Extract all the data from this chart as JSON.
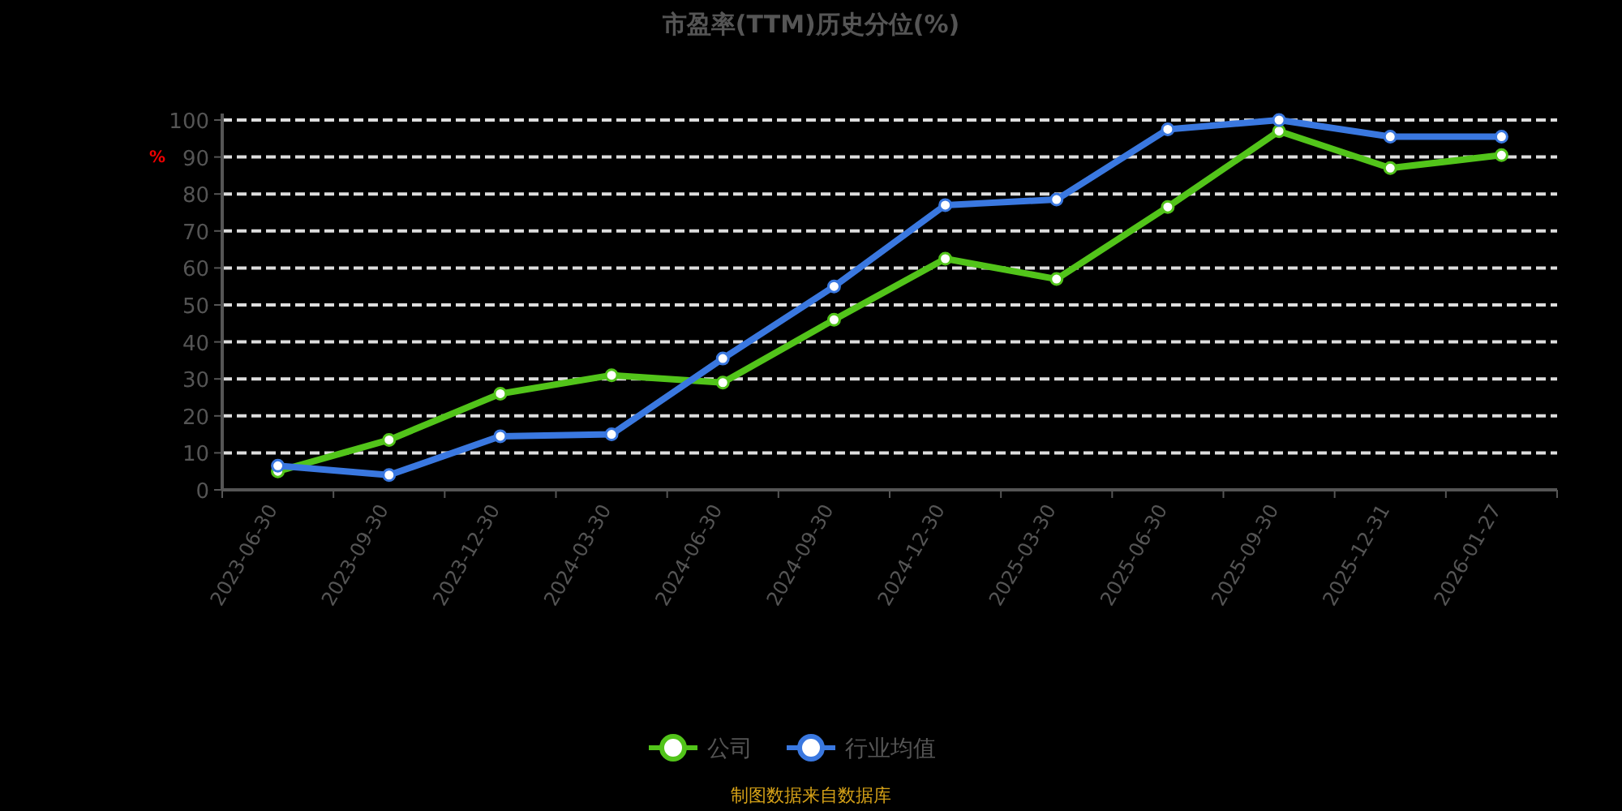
{
  "chart_data": {
    "type": "line",
    "title": "市盈率(TTM)历史分位(%)",
    "ylabel": "%",
    "categories": [
      "2023-06-30",
      "2023-09-30",
      "2023-12-30",
      "2024-03-30",
      "2024-06-30",
      "2024-09-30",
      "2024-12-30",
      "2025-03-30",
      "2025-06-30",
      "2025-09-30",
      "2025-12-31",
      "2026-01-27"
    ],
    "series": [
      {
        "name": "公司",
        "color": "#52c41a",
        "values": [
          5,
          13.5,
          26,
          31,
          29,
          46,
          62.5,
          57,
          76.5,
          97,
          87,
          90.5
        ]
      },
      {
        "name": "行业均值",
        "color": "#3a78e0",
        "values": [
          6.5,
          4,
          14.5,
          15,
          35.5,
          55,
          77,
          78.5,
          97.5,
          100,
          95.5,
          95.5
        ]
      }
    ],
    "ylim": [
      0,
      100
    ],
    "yticks": [
      0,
      10,
      20,
      30,
      40,
      50,
      60,
      70,
      80,
      90,
      100
    ],
    "grid": "y",
    "legend": "bottom",
    "marker": "circle",
    "line_style": "solid",
    "annotations": [
      "制图数据来自数据库"
    ]
  }
}
